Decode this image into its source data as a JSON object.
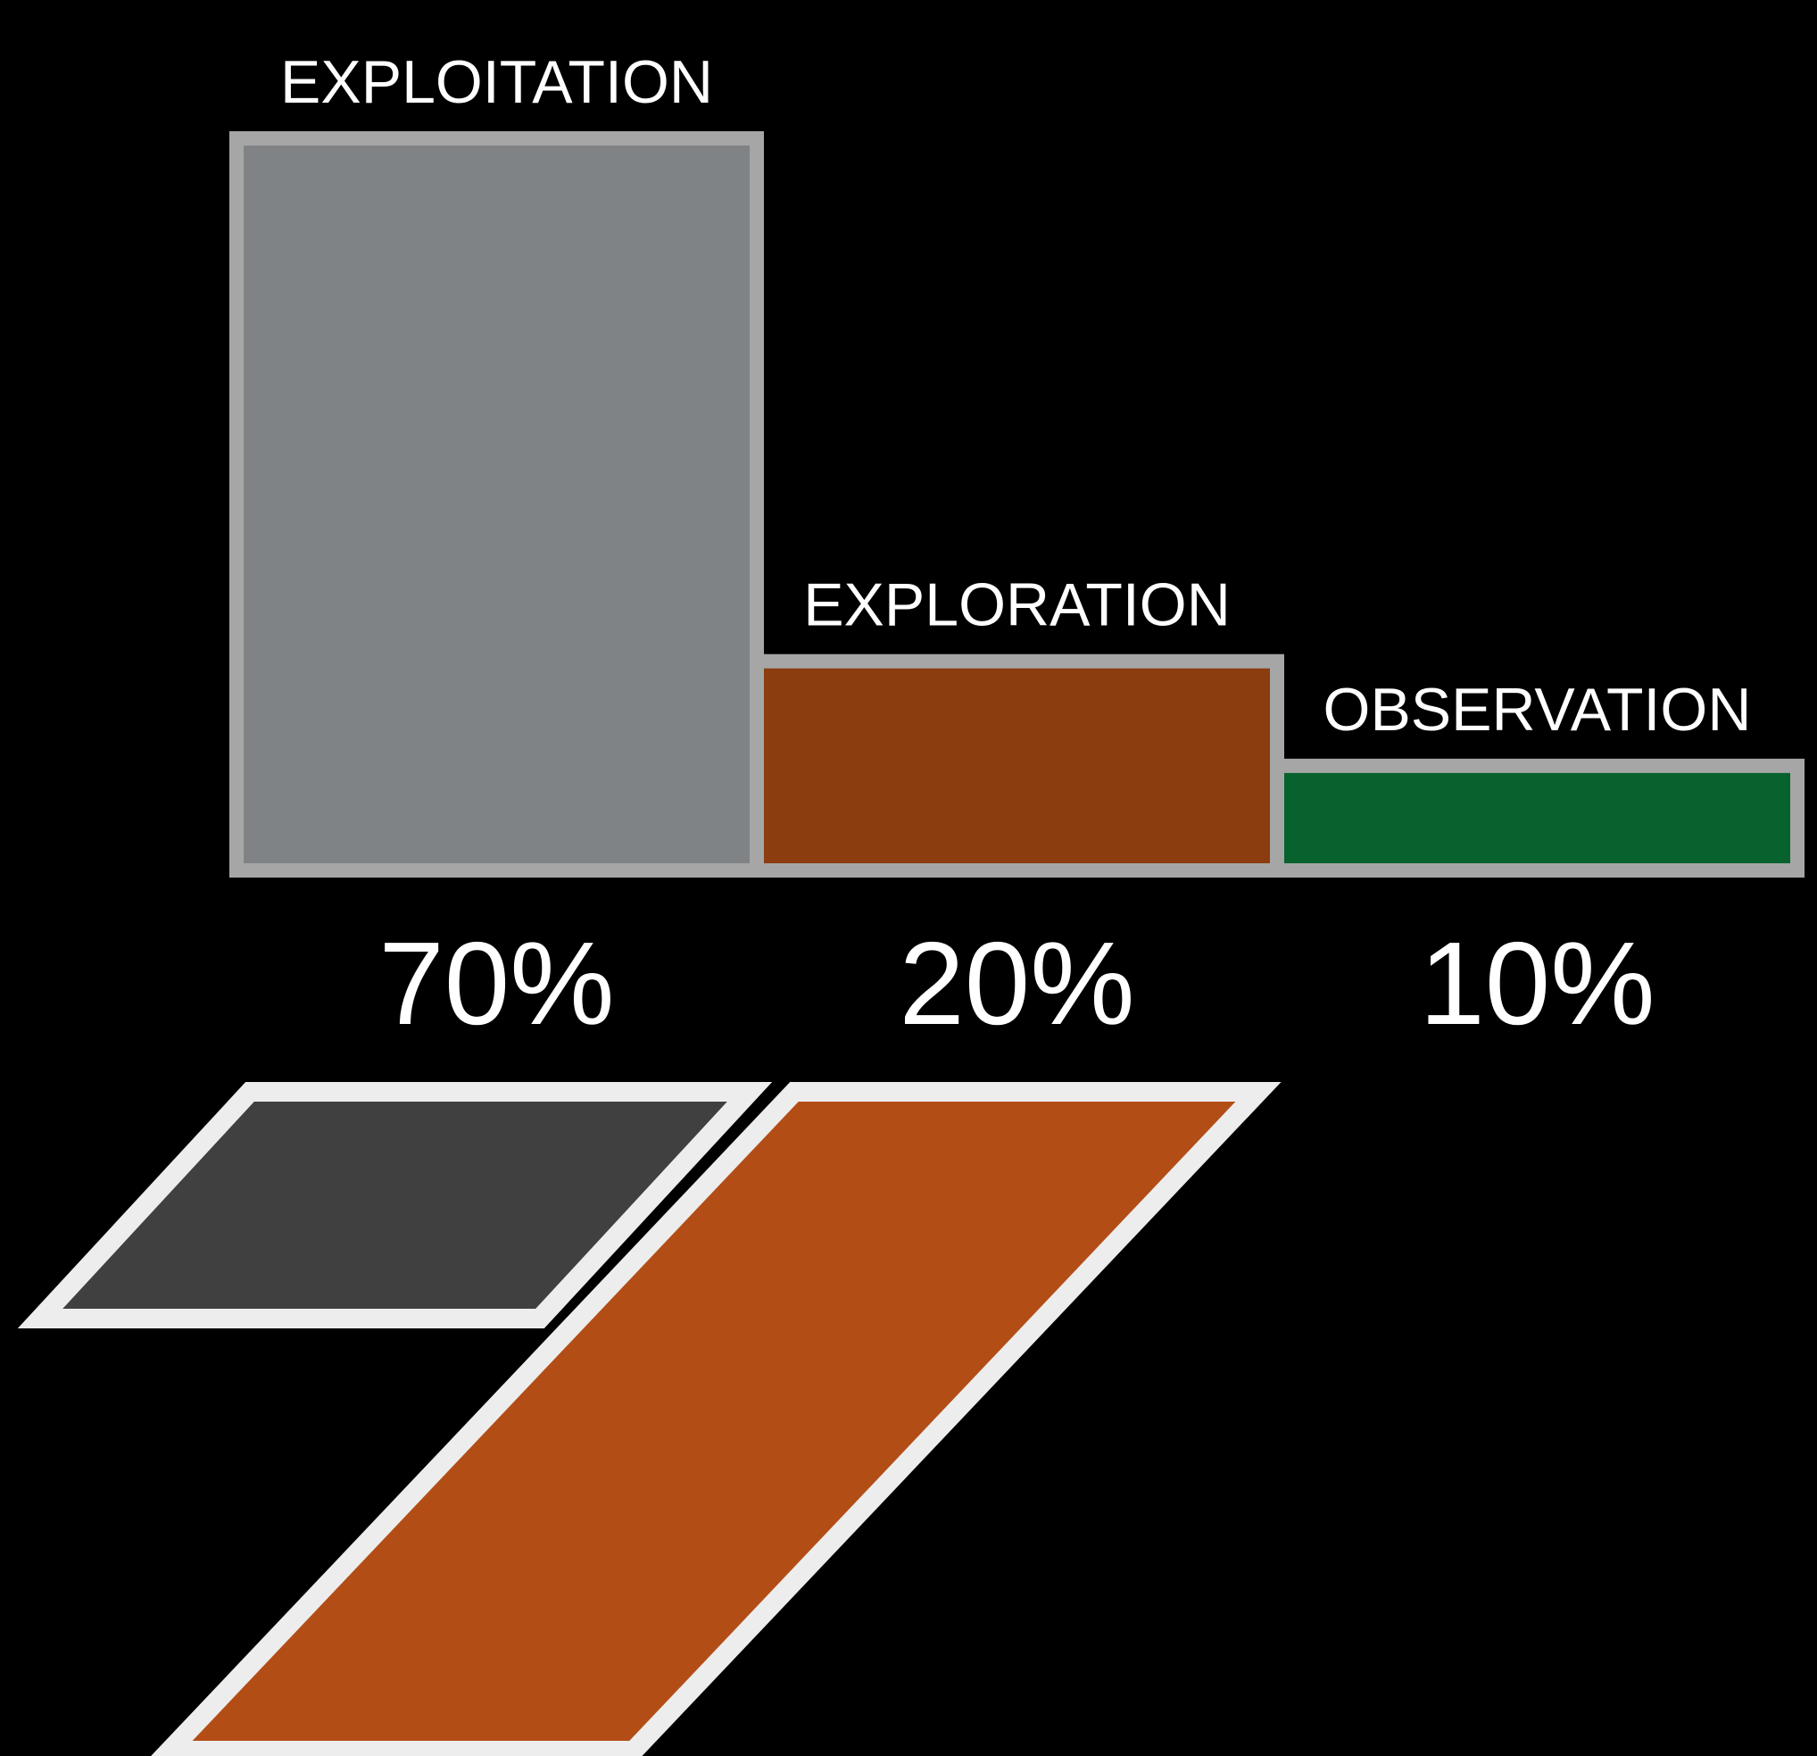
{
  "chart_data": {
    "type": "bar",
    "categories": [
      "EXPLOITATION",
      "EXPLORATION",
      "OBSERVATION"
    ],
    "values": [
      70,
      20,
      10
    ],
    "value_labels": [
      "70%",
      "20%",
      "10%"
    ],
    "ylim": [
      0,
      70
    ],
    "grid": false,
    "legend": "none",
    "colors": [
      "#7f8385",
      "#8b3d10",
      "#08622e"
    ],
    "border_color": "#a6a6a6"
  },
  "logo": {
    "colors": [
      "#404040",
      "#b34d16"
    ],
    "outline_color": "#ededed"
  }
}
